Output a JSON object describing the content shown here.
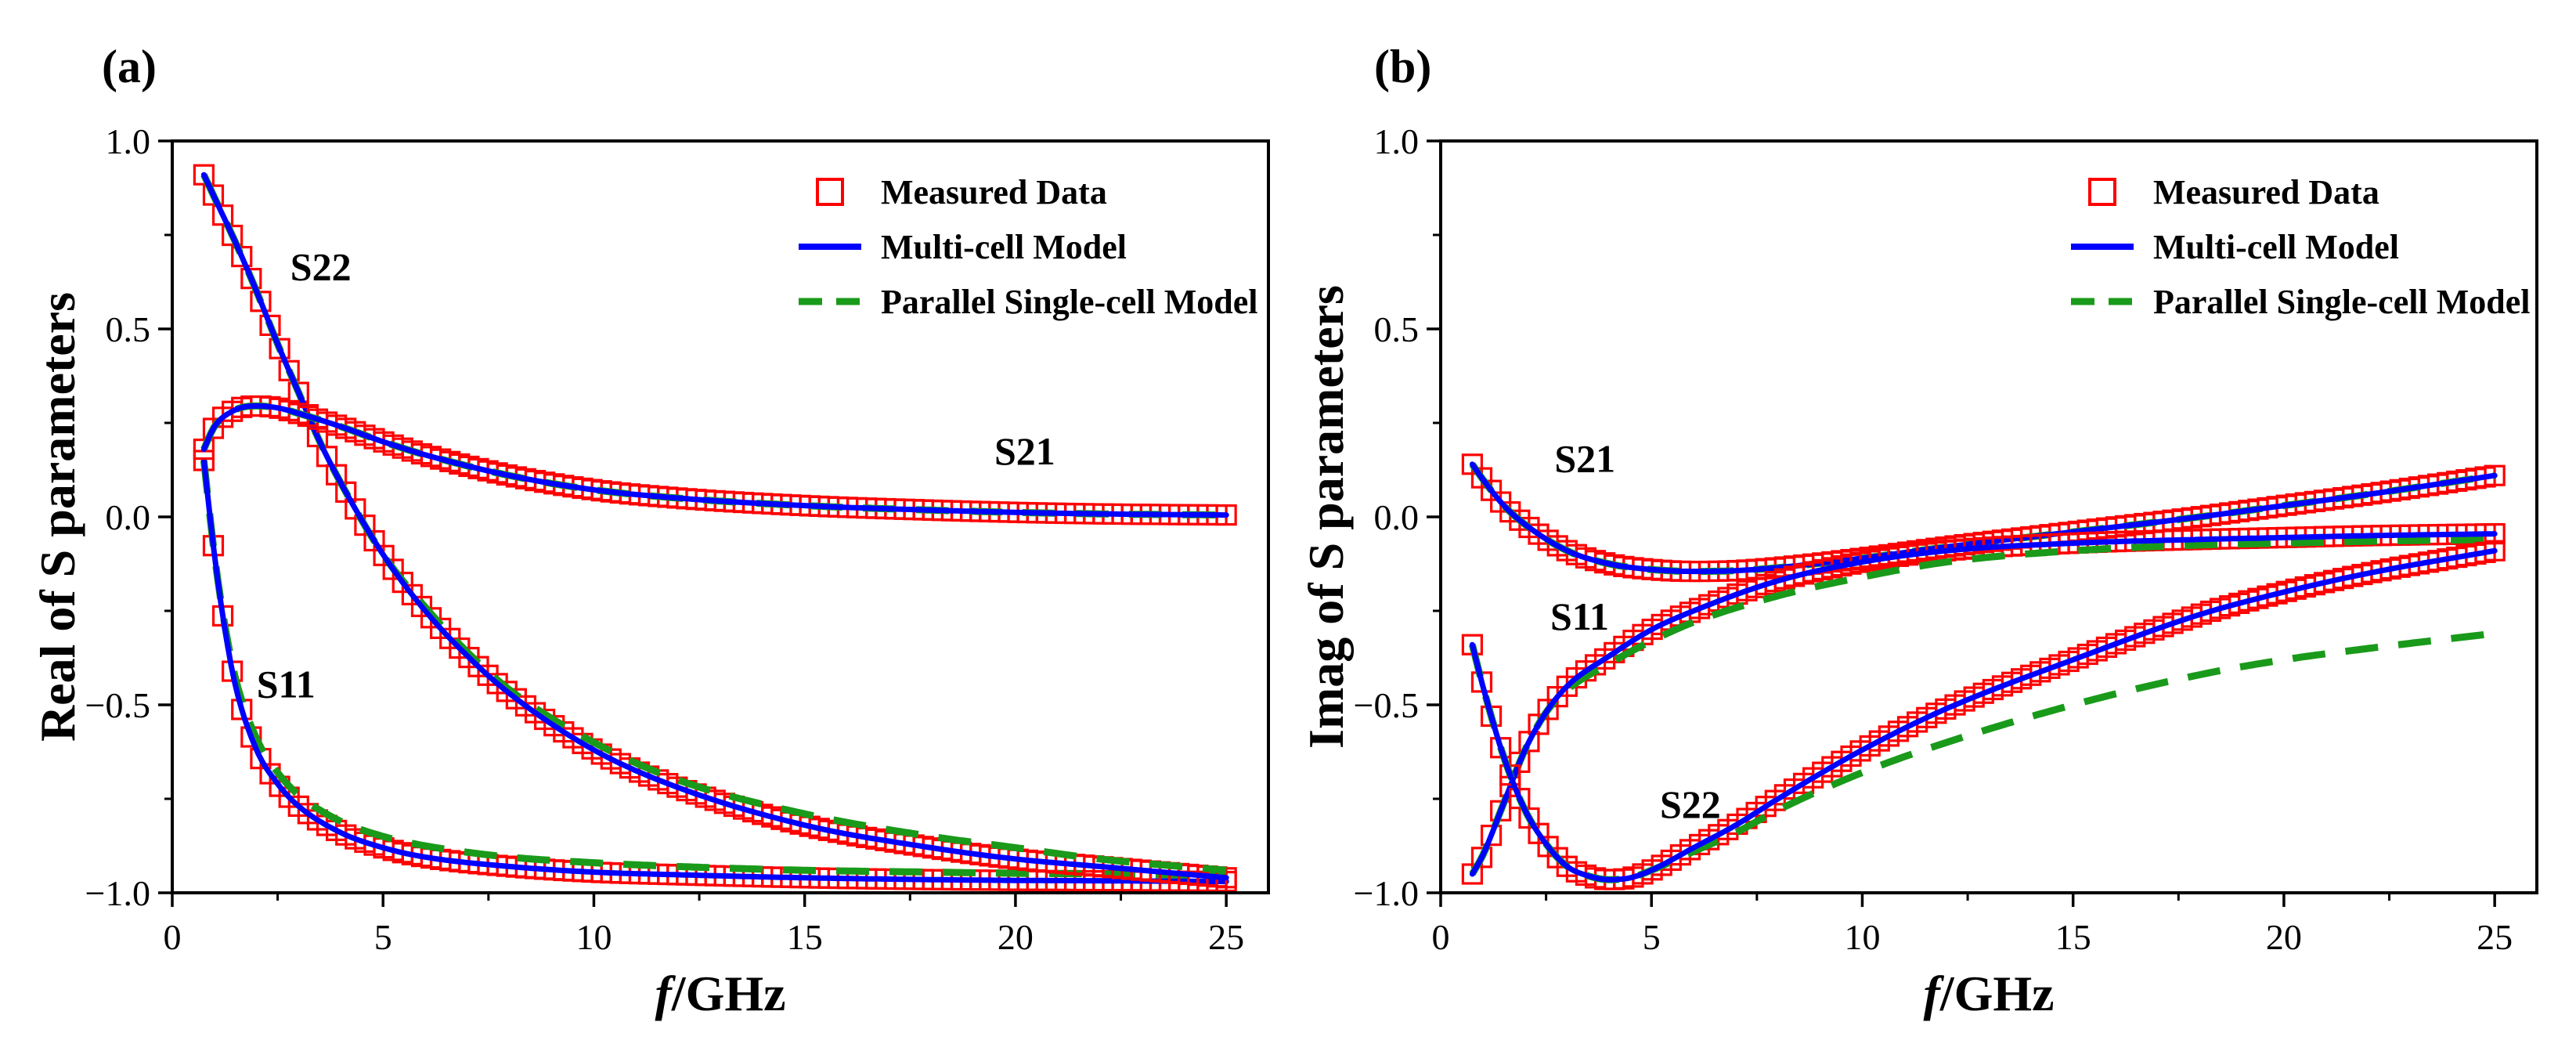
{
  "colors": {
    "measured": "#ff0000",
    "multi": "#0000ff",
    "parallel": "#1a9a1a"
  },
  "chart_data": [
    {
      "type": "line",
      "panel_label": "(a)",
      "xlabel_italic": "f",
      "xlabel_rest": "/GHz",
      "ylabel": "Real of S parameters",
      "xlim": [
        0,
        26
      ],
      "ylim": [
        -1.0,
        1.0
      ],
      "xticks": [
        0,
        5,
        10,
        15,
        20,
        25
      ],
      "xtick_labels": [
        "0",
        "5",
        "10",
        "15",
        "20",
        "25"
      ],
      "yticks": [
        -1.0,
        -0.5,
        0.0,
        0.5,
        1.0
      ],
      "ytick_labels": [
        "−1.0",
        "−0.5",
        "0.0",
        "0.5",
        "1.0"
      ],
      "legend": [
        "Measured Data",
        "Multi-cell Model",
        "Parallel Single-cell Model"
      ],
      "legend_position": "top-right",
      "annotations": [
        {
          "text": "S22",
          "x": 2.8,
          "y": 0.63
        },
        {
          "text": "S21",
          "x": 19.5,
          "y": 0.14
        },
        {
          "text": "S11",
          "x": 2.0,
          "y": -0.48
        }
      ],
      "series": [
        {
          "name": "S11",
          "x": [
            0.75,
            1,
            1.25,
            1.5,
            2,
            2.5,
            3,
            4,
            5,
            6,
            8,
            10,
            12,
            15,
            18,
            20,
            22,
            25
          ],
          "measured": [
            0.15,
            -0.1,
            -0.3,
            -0.45,
            -0.62,
            -0.71,
            -0.77,
            -0.84,
            -0.88,
            -0.905,
            -0.93,
            -0.945,
            -0.952,
            -0.96,
            -0.965,
            -0.967,
            -0.968,
            -0.97
          ],
          "multi": [
            0.15,
            -0.1,
            -0.3,
            -0.45,
            -0.62,
            -0.71,
            -0.77,
            -0.84,
            -0.88,
            -0.905,
            -0.93,
            -0.945,
            -0.952,
            -0.96,
            -0.965,
            -0.967,
            -0.968,
            -0.97
          ],
          "parallel": [
            0.15,
            -0.1,
            -0.29,
            -0.43,
            -0.59,
            -0.68,
            -0.74,
            -0.81,
            -0.85,
            -0.875,
            -0.905,
            -0.92,
            -0.93,
            -0.94,
            -0.945,
            -0.948,
            -0.95,
            -0.955
          ]
        },
        {
          "name": "S22",
          "x": [
            0.75,
            1,
            1.5,
            2,
            2.5,
            3,
            3.5,
            4,
            5,
            6,
            7,
            8,
            10,
            12,
            15,
            18,
            20,
            22,
            25
          ],
          "measured": [
            0.91,
            0.85,
            0.73,
            0.6,
            0.46,
            0.33,
            0.2,
            0.09,
            -0.1,
            -0.25,
            -0.37,
            -0.47,
            -0.62,
            -0.72,
            -0.82,
            -0.88,
            -0.91,
            -0.93,
            -0.96
          ],
          "multi": [
            0.91,
            0.85,
            0.73,
            0.6,
            0.46,
            0.33,
            0.2,
            0.09,
            -0.1,
            -0.25,
            -0.37,
            -0.47,
            -0.62,
            -0.72,
            -0.82,
            -0.88,
            -0.91,
            -0.93,
            -0.96
          ],
          "parallel": [
            0.91,
            0.85,
            0.73,
            0.6,
            0.46,
            0.33,
            0.2,
            0.09,
            -0.1,
            -0.24,
            -0.36,
            -0.46,
            -0.6,
            -0.7,
            -0.79,
            -0.85,
            -0.88,
            -0.91,
            -0.94
          ]
        },
        {
          "name": "S21",
          "x": [
            0.75,
            1,
            1.5,
            2,
            2.5,
            3,
            4,
            5,
            6,
            8,
            10,
            12,
            15,
            18,
            20,
            22,
            25
          ],
          "measured": [
            0.18,
            0.24,
            0.285,
            0.295,
            0.29,
            0.275,
            0.24,
            0.2,
            0.165,
            0.11,
            0.072,
            0.05,
            0.03,
            0.018,
            0.012,
            0.008,
            0.005
          ],
          "multi": [
            0.18,
            0.24,
            0.285,
            0.295,
            0.29,
            0.275,
            0.24,
            0.2,
            0.165,
            0.11,
            0.072,
            0.05,
            0.03,
            0.018,
            0.012,
            0.008,
            0.005
          ],
          "parallel": [
            0.18,
            0.24,
            0.285,
            0.295,
            0.29,
            0.275,
            0.24,
            0.2,
            0.165,
            0.11,
            0.072,
            0.05,
            0.03,
            0.018,
            0.012,
            0.008,
            0.005
          ]
        }
      ]
    },
    {
      "type": "line",
      "panel_label": "(b)",
      "xlabel_italic": "f",
      "xlabel_rest": "/GHz",
      "ylabel": "Imag of S parameters",
      "xlim": [
        0,
        26
      ],
      "ylim": [
        -1.0,
        1.0
      ],
      "xticks": [
        0,
        5,
        10,
        15,
        20,
        25
      ],
      "xtick_labels": [
        "0",
        "5",
        "10",
        "15",
        "20",
        "25"
      ],
      "yticks": [
        -1.0,
        -0.5,
        0.0,
        0.5,
        1.0
      ],
      "ytick_labels": [
        "−1.0",
        "−0.5",
        "0.0",
        "0.5",
        "1.0"
      ],
      "legend": [
        "Measured Data",
        "Multi-cell Model",
        "Parallel Single-cell Model"
      ],
      "legend_position": "top-right",
      "annotations": [
        {
          "text": "S21",
          "x": 2.7,
          "y": 0.12
        },
        {
          "text": "S11",
          "x": 2.6,
          "y": -0.3
        },
        {
          "text": "S22",
          "x": 5.2,
          "y": -0.8
        }
      ],
      "series": [
        {
          "name": "S21",
          "x": [
            0.75,
            1,
            1.5,
            2,
            3,
            4,
            5,
            6,
            7,
            8,
            10,
            12,
            15,
            18,
            20,
            22,
            25
          ],
          "measured": [
            0.14,
            0.1,
            0.03,
            -0.02,
            -0.09,
            -0.125,
            -0.14,
            -0.145,
            -0.143,
            -0.135,
            -0.11,
            -0.08,
            -0.04,
            0.0,
            0.03,
            0.06,
            0.11
          ],
          "multi": [
            0.14,
            0.1,
            0.03,
            -0.02,
            -0.09,
            -0.125,
            -0.14,
            -0.145,
            -0.143,
            -0.135,
            -0.11,
            -0.08,
            -0.04,
            0.0,
            0.03,
            0.06,
            0.11
          ],
          "parallel": [
            0.14,
            0.1,
            0.03,
            -0.02,
            -0.09,
            -0.125,
            -0.14,
            -0.145,
            -0.143,
            -0.135,
            -0.11,
            -0.08,
            -0.04,
            0.0,
            0.03,
            0.06,
            0.11
          ]
        },
        {
          "name": "S11",
          "x": [
            0.75,
            1,
            1.5,
            2,
            2.5,
            3,
            4,
            5,
            6,
            8,
            10,
            12,
            15,
            18,
            20,
            22,
            25
          ],
          "measured": [
            -0.95,
            -0.9,
            -0.76,
            -0.62,
            -0.52,
            -0.45,
            -0.37,
            -0.3,
            -0.25,
            -0.17,
            -0.12,
            -0.09,
            -0.07,
            -0.06,
            -0.055,
            -0.05,
            -0.045
          ],
          "multi": [
            -0.95,
            -0.9,
            -0.76,
            -0.62,
            -0.52,
            -0.45,
            -0.37,
            -0.3,
            -0.25,
            -0.17,
            -0.12,
            -0.09,
            -0.07,
            -0.06,
            -0.055,
            -0.05,
            -0.045
          ],
          "parallel": [
            -0.95,
            -0.9,
            -0.76,
            -0.62,
            -0.52,
            -0.46,
            -0.39,
            -0.33,
            -0.28,
            -0.21,
            -0.16,
            -0.12,
            -0.09,
            -0.075,
            -0.07,
            -0.065,
            -0.06
          ]
        },
        {
          "name": "S22",
          "x": [
            0.75,
            1,
            1.5,
            2,
            2.5,
            3,
            3.5,
            4,
            4.5,
            5,
            6,
            7,
            8,
            10,
            12,
            15,
            18,
            20,
            22,
            25
          ],
          "measured": [
            -0.34,
            -0.45,
            -0.64,
            -0.78,
            -0.87,
            -0.93,
            -0.955,
            -0.965,
            -0.96,
            -0.94,
            -0.88,
            -0.82,
            -0.75,
            -0.62,
            -0.51,
            -0.38,
            -0.26,
            -0.2,
            -0.15,
            -0.09
          ],
          "multi": [
            -0.34,
            -0.45,
            -0.64,
            -0.78,
            -0.87,
            -0.93,
            -0.955,
            -0.965,
            -0.96,
            -0.94,
            -0.88,
            -0.82,
            -0.75,
            -0.62,
            -0.51,
            -0.38,
            -0.26,
            -0.2,
            -0.15,
            -0.09
          ],
          "parallel": [
            -0.34,
            -0.45,
            -0.64,
            -0.78,
            -0.87,
            -0.93,
            -0.955,
            -0.965,
            -0.96,
            -0.94,
            -0.89,
            -0.84,
            -0.78,
            -0.68,
            -0.6,
            -0.5,
            -0.42,
            -0.38,
            -0.35,
            -0.31
          ]
        }
      ]
    }
  ]
}
